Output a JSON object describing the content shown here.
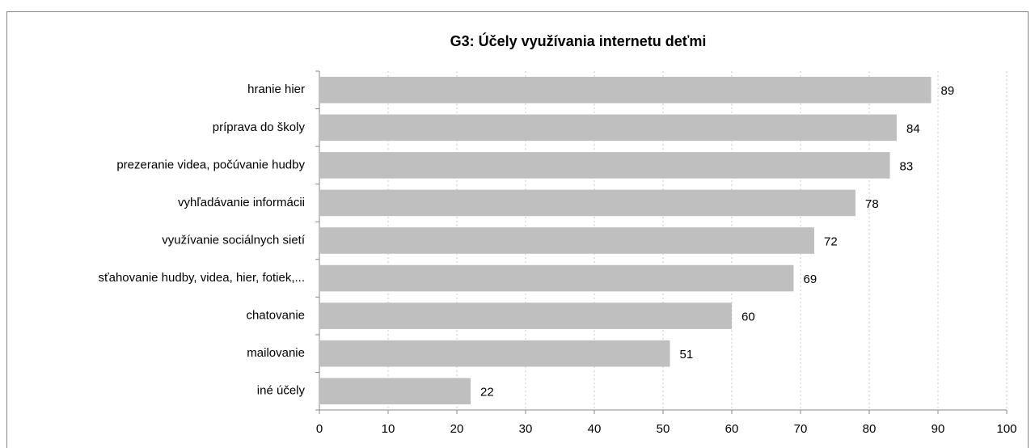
{
  "chart_data": {
    "type": "bar",
    "orientation": "horizontal",
    "title": "G3: Účely využívania internetu deťmi",
    "categories": [
      "hranie hier",
      "príprava do školy",
      "prezeranie videa, počúvanie hudby",
      "vyhľadávanie informácii",
      "využívanie sociálnych sietí",
      "sťahovanie hudby, videa, hier, fotiek,...",
      "chatovanie",
      "mailovanie",
      "iné účely"
    ],
    "values": [
      89,
      84,
      83,
      78,
      72,
      69,
      60,
      51,
      22
    ],
    "color": "#bfbfbf",
    "xlim": [
      0,
      100
    ],
    "xticks": [
      0,
      10,
      20,
      30,
      40,
      50,
      60,
      70,
      80,
      90,
      100
    ],
    "grid": true
  }
}
